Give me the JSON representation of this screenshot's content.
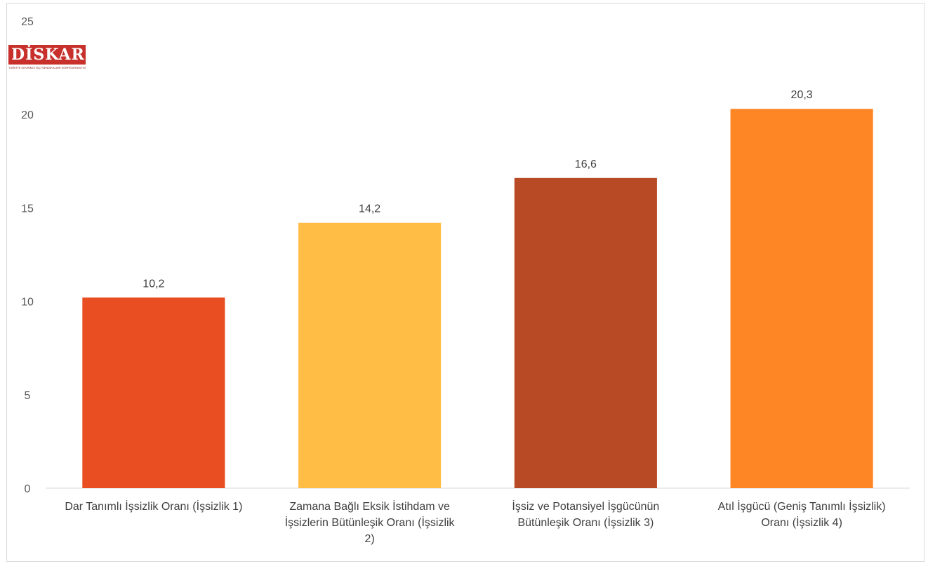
{
  "logo": {
    "text": "DİSKAR",
    "subtitle": "TÜRKİYE DEVRİMCİ İŞÇİ SENDİKALARI KONFEDERASYONU ARAŞTIRMA MERKEZİ"
  },
  "chart_data": {
    "type": "bar",
    "categories": [
      [
        "Dar Tanımlı İşsizlik Oranı (İşsizlik 1)"
      ],
      [
        "Zamana Bağlı Eksik İstihdam ve",
        "İşsizlerin Bütünleşik Oranı (İşsizlik",
        "2)"
      ],
      [
        "İşsiz ve Potansiyel İşgücünün",
        "Bütünleşik Oranı (İşsizlik 3)"
      ],
      [
        "Atıl İşgücü (Geniş Tanımlı İşsizlik)",
        "Oranı (İşsizlik 4)"
      ]
    ],
    "values": [
      10.2,
      14.2,
      16.6,
      20.3
    ],
    "value_labels": [
      "10,2",
      "14,2",
      "16,6",
      "20,3"
    ],
    "colors": [
      "#e84e22",
      "#ffbd45",
      "#b84a25",
      "#ff8625"
    ],
    "ylim": [
      0,
      25
    ],
    "yticks": [
      0,
      5,
      10,
      15,
      20,
      25
    ],
    "ytick_labels": [
      "0",
      "5",
      "10",
      "15",
      "20",
      "25"
    ],
    "grid": false,
    "title": "",
    "xlabel": "",
    "ylabel": ""
  }
}
